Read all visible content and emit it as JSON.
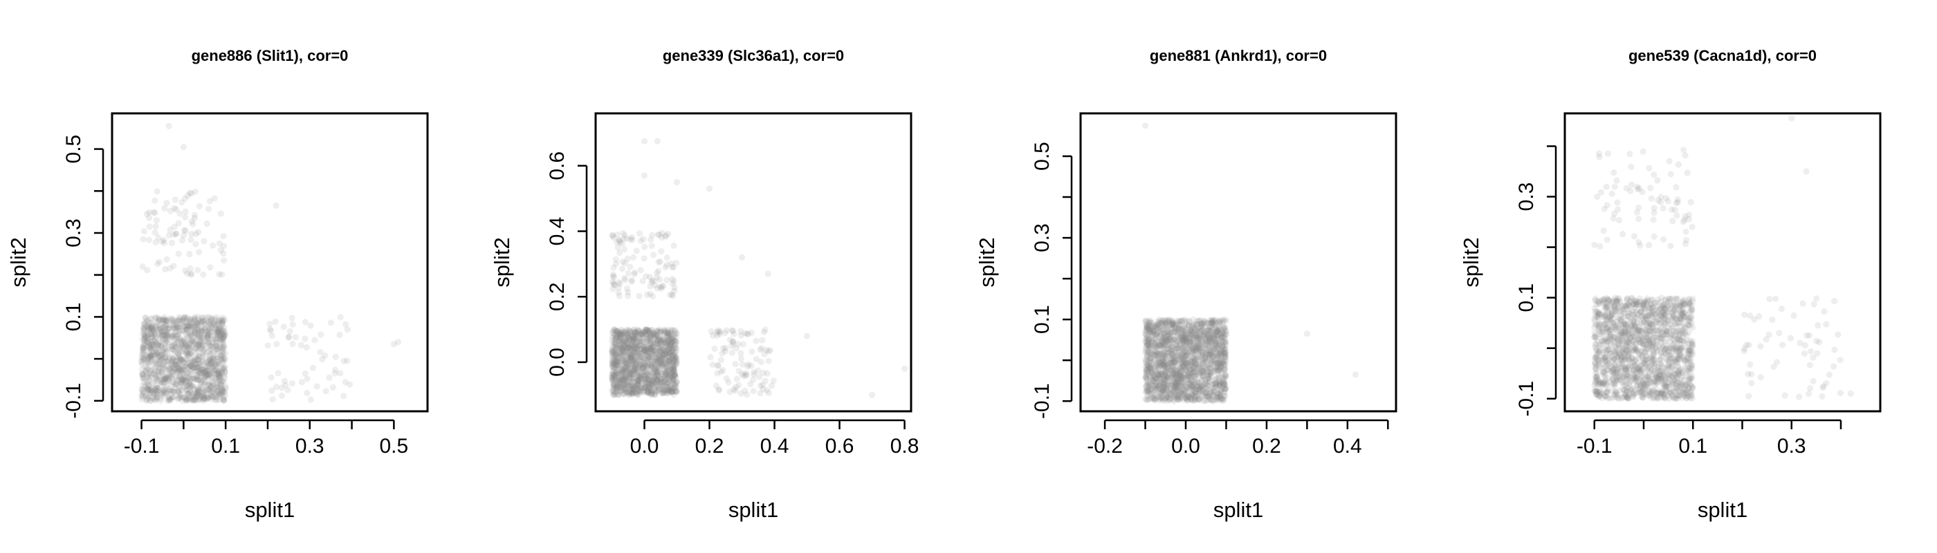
{
  "chart_data": [
    {
      "type": "scatter",
      "title": "gene886 (Slit1), cor=0",
      "xlabel": "split1",
      "ylabel": "split2",
      "xlim": [
        -0.17,
        0.58
      ],
      "ylim": [
        -0.125,
        0.585
      ],
      "xticks": [
        -0.1,
        0.0,
        0.1,
        0.2,
        0.3,
        0.4,
        0.5
      ],
      "xtick_labels": [
        "-0.1",
        "",
        "0.1",
        "",
        "0.3",
        "",
        "0.5"
      ],
      "yticks": [
        -0.1,
        0.0,
        0.1,
        0.2,
        0.3,
        0.4,
        0.5
      ],
      "ytick_labels": [
        "-0.1",
        "",
        "0.1",
        "",
        "0.3",
        "",
        "0.5"
      ],
      "point_color": "#8a8a8a",
      "clusters": [
        {
          "x_range": [
            -0.1,
            0.1
          ],
          "y_range": [
            -0.1,
            0.1
          ],
          "n": 1400
        },
        {
          "x_range": [
            -0.1,
            0.1
          ],
          "y_range": [
            0.2,
            0.4
          ],
          "n": 90
        },
        {
          "x_range": [
            0.2,
            0.4
          ],
          "y_range": [
            -0.1,
            0.1
          ],
          "n": 60
        }
      ],
      "outliers": [
        [
          -0.035,
          0.555
        ],
        [
          0.0,
          0.505
        ],
        [
          0.22,
          0.365
        ],
        [
          0.5,
          0.035
        ],
        [
          0.51,
          0.04
        ]
      ]
    },
    {
      "type": "scatter",
      "title": "gene339 (Slc36a1), cor=0",
      "xlabel": "split1",
      "ylabel": "split2",
      "xlim": [
        -0.15,
        0.82
      ],
      "ylim": [
        -0.15,
        0.76
      ],
      "xticks": [
        0.0,
        0.2,
        0.4,
        0.6,
        0.8
      ],
      "xtick_labels": [
        "0.0",
        "0.2",
        "0.4",
        "0.6",
        "0.8"
      ],
      "yticks": [
        0.0,
        0.2,
        0.4,
        0.6
      ],
      "ytick_labels": [
        "0.0",
        "0.2",
        "0.4",
        "0.6"
      ],
      "point_color": "#8a8a8a",
      "clusters": [
        {
          "x_range": [
            -0.1,
            0.1
          ],
          "y_range": [
            -0.1,
            0.1
          ],
          "n": 1400
        },
        {
          "x_range": [
            -0.1,
            0.1
          ],
          "y_range": [
            0.2,
            0.4
          ],
          "n": 110
        },
        {
          "x_range": [
            0.2,
            0.4
          ],
          "y_range": [
            -0.1,
            0.1
          ],
          "n": 100
        }
      ],
      "outliers": [
        [
          0.0,
          0.675
        ],
        [
          0.04,
          0.675
        ],
        [
          0.0,
          0.57
        ],
        [
          0.1,
          0.55
        ],
        [
          0.2,
          0.53
        ],
        [
          0.3,
          0.32
        ],
        [
          0.38,
          0.27
        ],
        [
          0.5,
          0.08
        ],
        [
          0.7,
          -0.1
        ],
        [
          0.8,
          -0.02
        ]
      ]
    },
    {
      "type": "scatter",
      "title": "gene881 (Ankrd1), cor=0",
      "xlabel": "split1",
      "ylabel": "split2",
      "xlim": [
        -0.26,
        0.52
      ],
      "ylim": [
        -0.125,
        0.605
      ],
      "xticks": [
        -0.2,
        0.0,
        0.2,
        0.4
      ],
      "xtick_labels": [
        "-0.2",
        "0.0",
        "0.2",
        "0.4"
      ],
      "xticks_minor": [
        -0.1,
        0.1,
        0.3,
        0.5
      ],
      "yticks": [
        -0.1,
        0.0,
        0.1,
        0.2,
        0.3,
        0.4,
        0.5
      ],
      "ytick_labels": [
        "-0.1",
        "",
        "0.1",
        "",
        "0.3",
        "",
        "0.5"
      ],
      "point_color": "#8a8a8a",
      "clusters": [
        {
          "x_range": [
            -0.1,
            0.1
          ],
          "y_range": [
            -0.1,
            0.1
          ],
          "n": 1800
        }
      ],
      "outliers": [
        [
          -0.1,
          0.575
        ],
        [
          0.3,
          0.065
        ],
        [
          0.42,
          -0.035
        ]
      ]
    },
    {
      "type": "scatter",
      "title": "gene539 (Cacna1d), cor=0",
      "xlabel": "split1",
      "ylabel": "split2",
      "xlim": [
        -0.16,
        0.48
      ],
      "ylim": [
        -0.125,
        0.465
      ],
      "xticks": [
        -0.1,
        0.0,
        0.1,
        0.2,
        0.3,
        0.4
      ],
      "xtick_labels": [
        "-0.1",
        "",
        "0.1",
        "",
        "0.3",
        ""
      ],
      "yticks": [
        -0.1,
        0.0,
        0.1,
        0.2,
        0.3,
        0.4
      ],
      "ytick_labels": [
        "-0.1",
        "",
        "0.1",
        "",
        "0.3",
        ""
      ],
      "point_color": "#8a8a8a",
      "clusters": [
        {
          "x_range": [
            -0.1,
            0.1
          ],
          "y_range": [
            -0.1,
            0.1
          ],
          "n": 1600
        },
        {
          "x_range": [
            -0.1,
            0.1
          ],
          "y_range": [
            0.2,
            0.4
          ],
          "n": 80
        },
        {
          "x_range": [
            0.2,
            0.4
          ],
          "y_range": [
            -0.1,
            0.1
          ],
          "n": 60
        }
      ],
      "outliers": [
        [
          0.3,
          0.455
        ],
        [
          0.33,
          0.35
        ],
        [
          0.42,
          -0.09
        ]
      ]
    }
  ]
}
